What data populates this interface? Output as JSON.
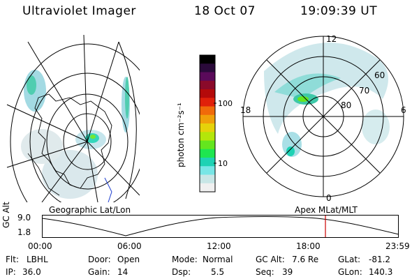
{
  "header": {
    "instrument": "Ultraviolet Imager",
    "date": "18 Oct 07",
    "time": "19:09:39 UT"
  },
  "colorbar": {
    "label": "photon cm⁻²s⁻¹",
    "ticks": [
      "100",
      "10"
    ],
    "colors": [
      "#000000",
      "#2a0a3a",
      "#5a0a5a",
      "#8a0a2a",
      "#b40a0a",
      "#e0200a",
      "#f06a0a",
      "#f0a00a",
      "#e6d20a",
      "#b4e60a",
      "#64e61e",
      "#1ee650",
      "#1ed2b4",
      "#78e6e6",
      "#c8e6e6",
      "#f0f0f0"
    ]
  },
  "geo_map": {
    "label": "Geographic Lat/Lon"
  },
  "polar_map": {
    "label": "Apex MLat/MLT",
    "mlt_labels": {
      "top": "12",
      "left": "18",
      "right": "6",
      "bottom": "0"
    },
    "lat_labels": [
      "60",
      "70",
      "80"
    ]
  },
  "timeline": {
    "ylabel": "GC Alt",
    "yticks": [
      "9.0",
      "1.8"
    ],
    "xticks": [
      "00:00",
      "06:00",
      "12:00",
      "18:00",
      "23:59"
    ],
    "current_marker_color": "#cc0000"
  },
  "status": {
    "flt_label": "Flt:",
    "flt_value": "LBHL",
    "ip_label": "IP:",
    "ip_value": "36.0",
    "door_label": "Door:",
    "door_value": "Open",
    "gain_label": "Gain:",
    "gain_value": "14",
    "mode_label": "Mode:",
    "mode_value": "Normal",
    "dsp_label": "Dsp:",
    "dsp_value": "5.5",
    "gcalt_label": "GC Alt:",
    "gcalt_value": "7.6 Re",
    "seq_label": "Seq:",
    "seq_value": "39",
    "glat_label": "GLat:",
    "glat_value": "-81.2",
    "glon_label": "GLon:",
    "glon_value": "140.3"
  }
}
